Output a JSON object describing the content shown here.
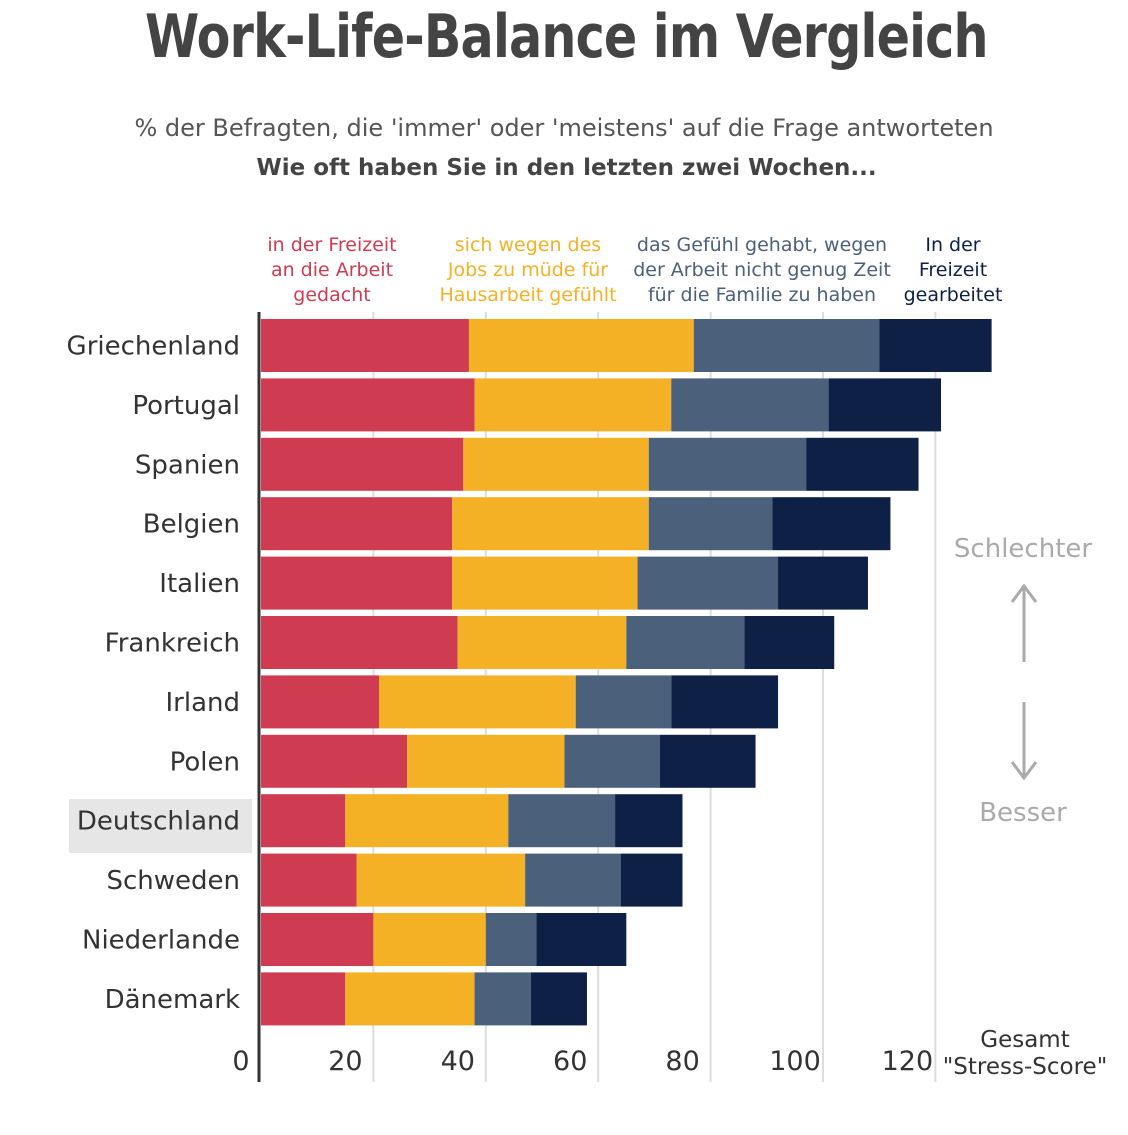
{
  "title": "Work-Life-Balance im Vergleich",
  "subtitle": "% der Befragten, die 'immer' oder 'meistens' auf die Frage antworteten",
  "question": "Wie oft haben Sie in den letzten zwei Wochen...",
  "legend": [
    {
      "lines": [
        "in der Freizeit",
        "an die Arbeit",
        "gedacht"
      ],
      "color": "#cf3b51"
    },
    {
      "lines": [
        "sich wegen des",
        "Jobs zu müde für",
        "Hausarbeit gefühlt"
      ],
      "color": "#f4b125"
    },
    {
      "lines": [
        "das Gefühl gehabt, wegen",
        "der Arbeit nicht genug Zeit",
        "für die Familie zu haben"
      ],
      "color": "#4b607a"
    },
    {
      "lines": [
        "In der",
        "Freizeit",
        "gearbeitet"
      ],
      "color": "#0e2046"
    }
  ],
  "side": {
    "worse": "Schlechter",
    "better": "Besser",
    "total_lines": [
      "Gesamt",
      "\"Stress-Score\""
    ]
  },
  "highlight_category": "Deutschland",
  "chart_data": {
    "type": "bar",
    "orientation": "horizontal",
    "stacked": true,
    "title": "Work-Life-Balance im Vergleich",
    "subtitle": "% der Befragten, die 'immer' oder 'meistens' auf die Frage antworteten",
    "xlim": [
      0,
      130
    ],
    "xticks": [
      0,
      20,
      40,
      60,
      80,
      100,
      120
    ],
    "grid": true,
    "categories": [
      "Griechenland",
      "Portugal",
      "Spanien",
      "Belgien",
      "Italien",
      "Frankreich",
      "Irland",
      "Polen",
      "Deutschland",
      "Schweden",
      "Niederlande",
      "Dänemark"
    ],
    "series": [
      {
        "name": "in der Freizeit an die Arbeit gedacht",
        "color": "#cf3b51",
        "values": [
          37,
          38,
          36,
          34,
          34,
          35,
          21,
          26,
          15,
          17,
          20,
          15
        ]
      },
      {
        "name": "sich wegen des Jobs zu müde für Hausarbeit gefühlt",
        "color": "#f4b125",
        "values": [
          40,
          35,
          33,
          35,
          33,
          30,
          35,
          28,
          29,
          30,
          20,
          23
        ]
      },
      {
        "name": "das Gefühl gehabt, wegen der Arbeit nicht genug Zeit für die Familie zu haben",
        "color": "#4b607a",
        "values": [
          33,
          28,
          28,
          22,
          25,
          21,
          17,
          17,
          19,
          17,
          9,
          10
        ]
      },
      {
        "name": "In der Freizeit gearbeitet",
        "color": "#0e2046",
        "values": [
          20,
          20,
          20,
          21,
          16,
          16,
          19,
          17,
          12,
          11,
          16,
          10
        ]
      }
    ]
  }
}
